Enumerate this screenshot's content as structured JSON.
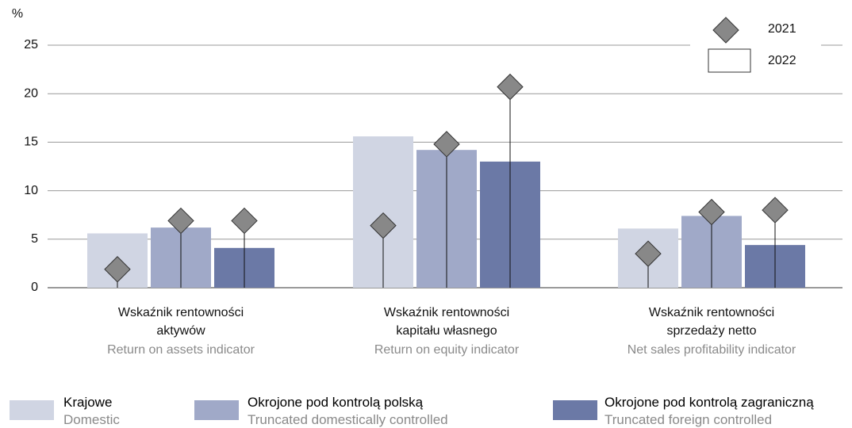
{
  "chart_data": {
    "type": "bar",
    "y_unit": "%",
    "categories": [
      "Wskaźnik rentowności aktywów",
      "Wskaźnik rentowności kapitału własnego",
      "Wskaźnik rentowności sprzedaży netto"
    ],
    "categories_en": [
      "Return on assets indicator",
      "Return on equity indicator",
      "Net sales profitability indicator"
    ],
    "marker_legend": {
      "diamond": "2021",
      "bar": "2022"
    },
    "series": [
      {
        "name": "Krajowe",
        "name_en": "Domestic",
        "color": "#d0d5e3",
        "values": [
          5.6,
          15.6,
          6.1
        ],
        "values_2021": [
          1.9,
          6.4,
          3.5
        ]
      },
      {
        "name": "Okrojone pod kontrolą polską",
        "name_en": "Truncated domestically controlled",
        "color": "#a0a9c8",
        "values": [
          6.2,
          14.2,
          7.4
        ],
        "values_2021": [
          6.9,
          14.8,
          7.8
        ]
      },
      {
        "name": "Okrojone pod kontrolą zagraniczną",
        "name_en": "Truncated foreign controlled",
        "color": "#6b79a6",
        "values": [
          4.1,
          13.0,
          4.4
        ],
        "values_2021": [
          6.9,
          20.7,
          8.0
        ]
      }
    ],
    "diamond_color": "#888888",
    "ylim": [
      0,
      25
    ],
    "yticks": [
      0,
      5,
      10,
      15,
      20,
      25
    ],
    "grid": true
  }
}
